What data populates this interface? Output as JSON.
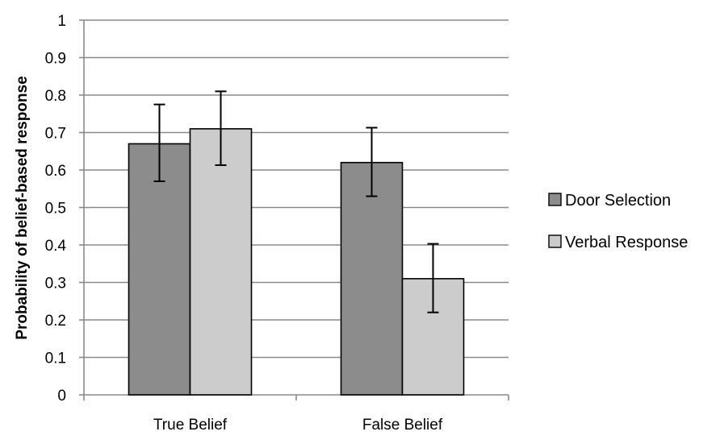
{
  "chart_data": {
    "type": "bar",
    "categories": [
      "True Belief",
      "False Belief"
    ],
    "series": [
      {
        "name": "Door Selection",
        "values": [
          0.67,
          0.62
        ],
        "error_low": [
          0.57,
          0.53
        ],
        "error_high": [
          0.775,
          0.713
        ],
        "color": "#8c8c8c"
      },
      {
        "name": "Verbal Response",
        "values": [
          0.71,
          0.31
        ],
        "error_low": [
          0.613,
          0.22
        ],
        "error_high": [
          0.81,
          0.403
        ],
        "color": "#cccccc"
      }
    ],
    "ylabel": "Probability of belief-based response",
    "ylim": [
      0,
      1
    ],
    "yticks": [
      0,
      0.1,
      0.2,
      0.3,
      0.4,
      0.5,
      0.6,
      0.7,
      0.8,
      0.9,
      1
    ],
    "ytick_labels": [
      "0",
      "0.1",
      "0.2",
      "0.3",
      "0.4",
      "0.5",
      "0.6",
      "0.7",
      "0.8",
      "0.9",
      "1"
    ],
    "grid": true,
    "legend_position": "right",
    "grid_color": "#8a8a8a",
    "bar_outline_color": "#000000"
  }
}
